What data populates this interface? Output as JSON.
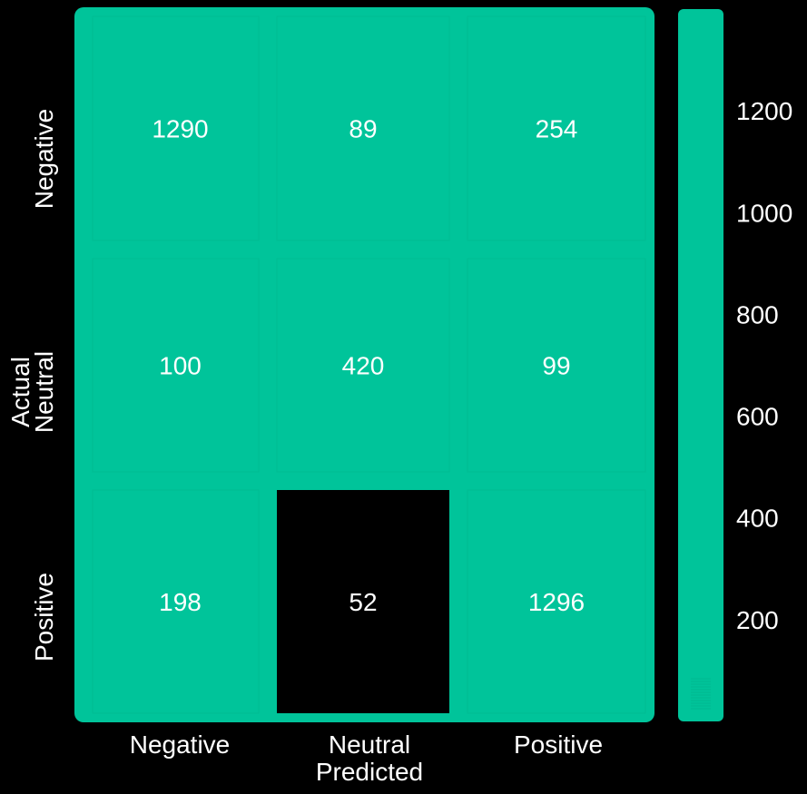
{
  "chart_data": {
    "type": "heatmap",
    "title": "",
    "xlabel": "Predicted",
    "ylabel": "Actual",
    "x_categories": [
      "Negative",
      "Neutral",
      "Positive"
    ],
    "y_categories": [
      "Negative",
      "Neutral",
      "Positive"
    ],
    "values": [
      [
        1290,
        89,
        254
      ],
      [
        100,
        420,
        99
      ],
      [
        198,
        52,
        1296
      ]
    ],
    "colorbar": {
      "ticks": [
        200,
        400,
        600,
        800,
        1000,
        1200
      ],
      "range": [
        0,
        1400
      ]
    },
    "colors": {
      "background": "#000000",
      "fill": "#00c49a",
      "min_cell": "#000000",
      "text": "#ffffff"
    }
  }
}
